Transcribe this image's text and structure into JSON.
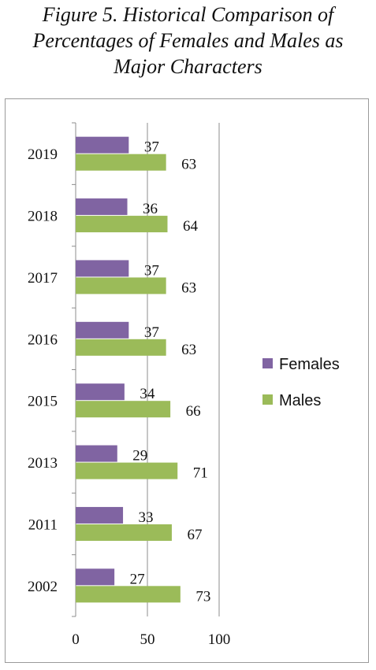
{
  "title_lines": [
    "Figure 5. Historical Comparison of",
    "Percentages of Females and Males as",
    "Major Characters"
  ],
  "colors": {
    "Females": "#8064a2",
    "Males": "#9bbb59",
    "axis": "#8c8c8c",
    "frame": "#9a9a9a"
  },
  "chart_data": {
    "type": "bar",
    "orientation": "horizontal",
    "categories": [
      "2019",
      "2018",
      "2017",
      "2016",
      "2015",
      "2013",
      "2011",
      "2002"
    ],
    "series": [
      {
        "name": "Females",
        "values": [
          37,
          36,
          37,
          37,
          34,
          29,
          33,
          27
        ]
      },
      {
        "name": "Males",
        "values": [
          63,
          64,
          63,
          63,
          66,
          71,
          67,
          73
        ]
      }
    ],
    "xticks": [
      "0",
      "50",
      "100"
    ],
    "xlim": [
      0,
      100
    ],
    "grid": "vertical major",
    "legend": "right",
    "data_labels": true
  }
}
